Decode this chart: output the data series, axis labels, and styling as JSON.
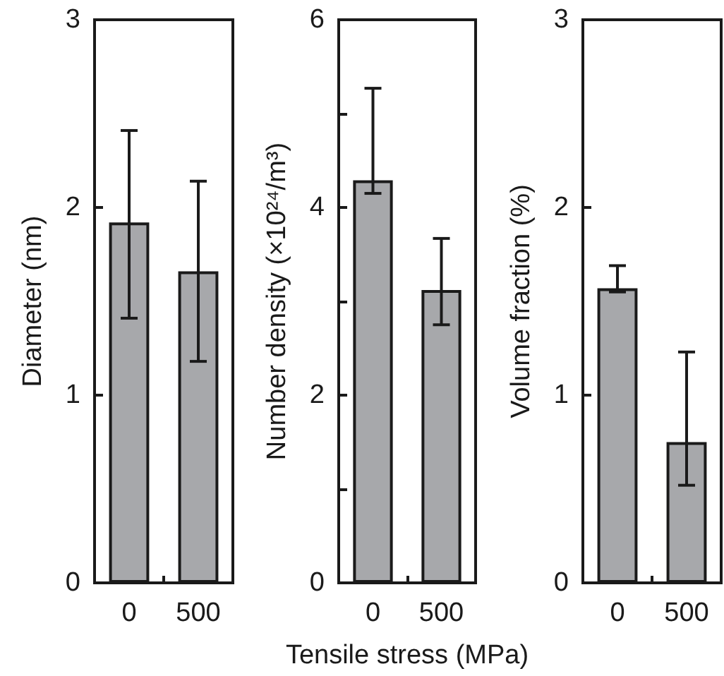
{
  "chart_data": [
    {
      "type": "bar",
      "categories": [
        "0",
        "500"
      ],
      "values": [
        1.92,
        1.66
      ],
      "errors": [
        [
          1.41,
          2.41
        ],
        [
          1.18,
          2.14
        ]
      ],
      "color": "#a7a8ab",
      "ylim": [
        0,
        3
      ],
      "yticks": [
        0,
        1,
        2,
        3
      ],
      "ylabel": "Diameter (nm)",
      "grid": false
    },
    {
      "type": "bar",
      "categories": [
        "0",
        "500"
      ],
      "values": [
        4.29,
        3.12
      ],
      "errors": [
        [
          4.15,
          5.27
        ],
        [
          2.75,
          3.67
        ]
      ],
      "color": "#a7a8ab",
      "ylim": [
        0,
        6
      ],
      "yticks": [
        0,
        {
          "value": 1,
          "label": null
        },
        2,
        {
          "value": 3,
          "label": null
        },
        4,
        {
          "value": 5,
          "label": null
        },
        6
      ],
      "ylabel": "Number density (×10²⁴/m³)",
      "xlabel": "Tensile stress (MPa)",
      "grid": false
    },
    {
      "type": "bar",
      "categories": [
        "0",
        "500"
      ],
      "values": [
        1.57,
        0.75
      ],
      "errors": [
        [
          1.55,
          1.69
        ],
        [
          0.52,
          1.23
        ]
      ],
      "color": "#a7a8ab",
      "ylim": [
        0,
        3
      ],
      "yticks": [
        0,
        1,
        2,
        3
      ],
      "ylabel": "Volume fraction (%)",
      "grid": false
    }
  ]
}
